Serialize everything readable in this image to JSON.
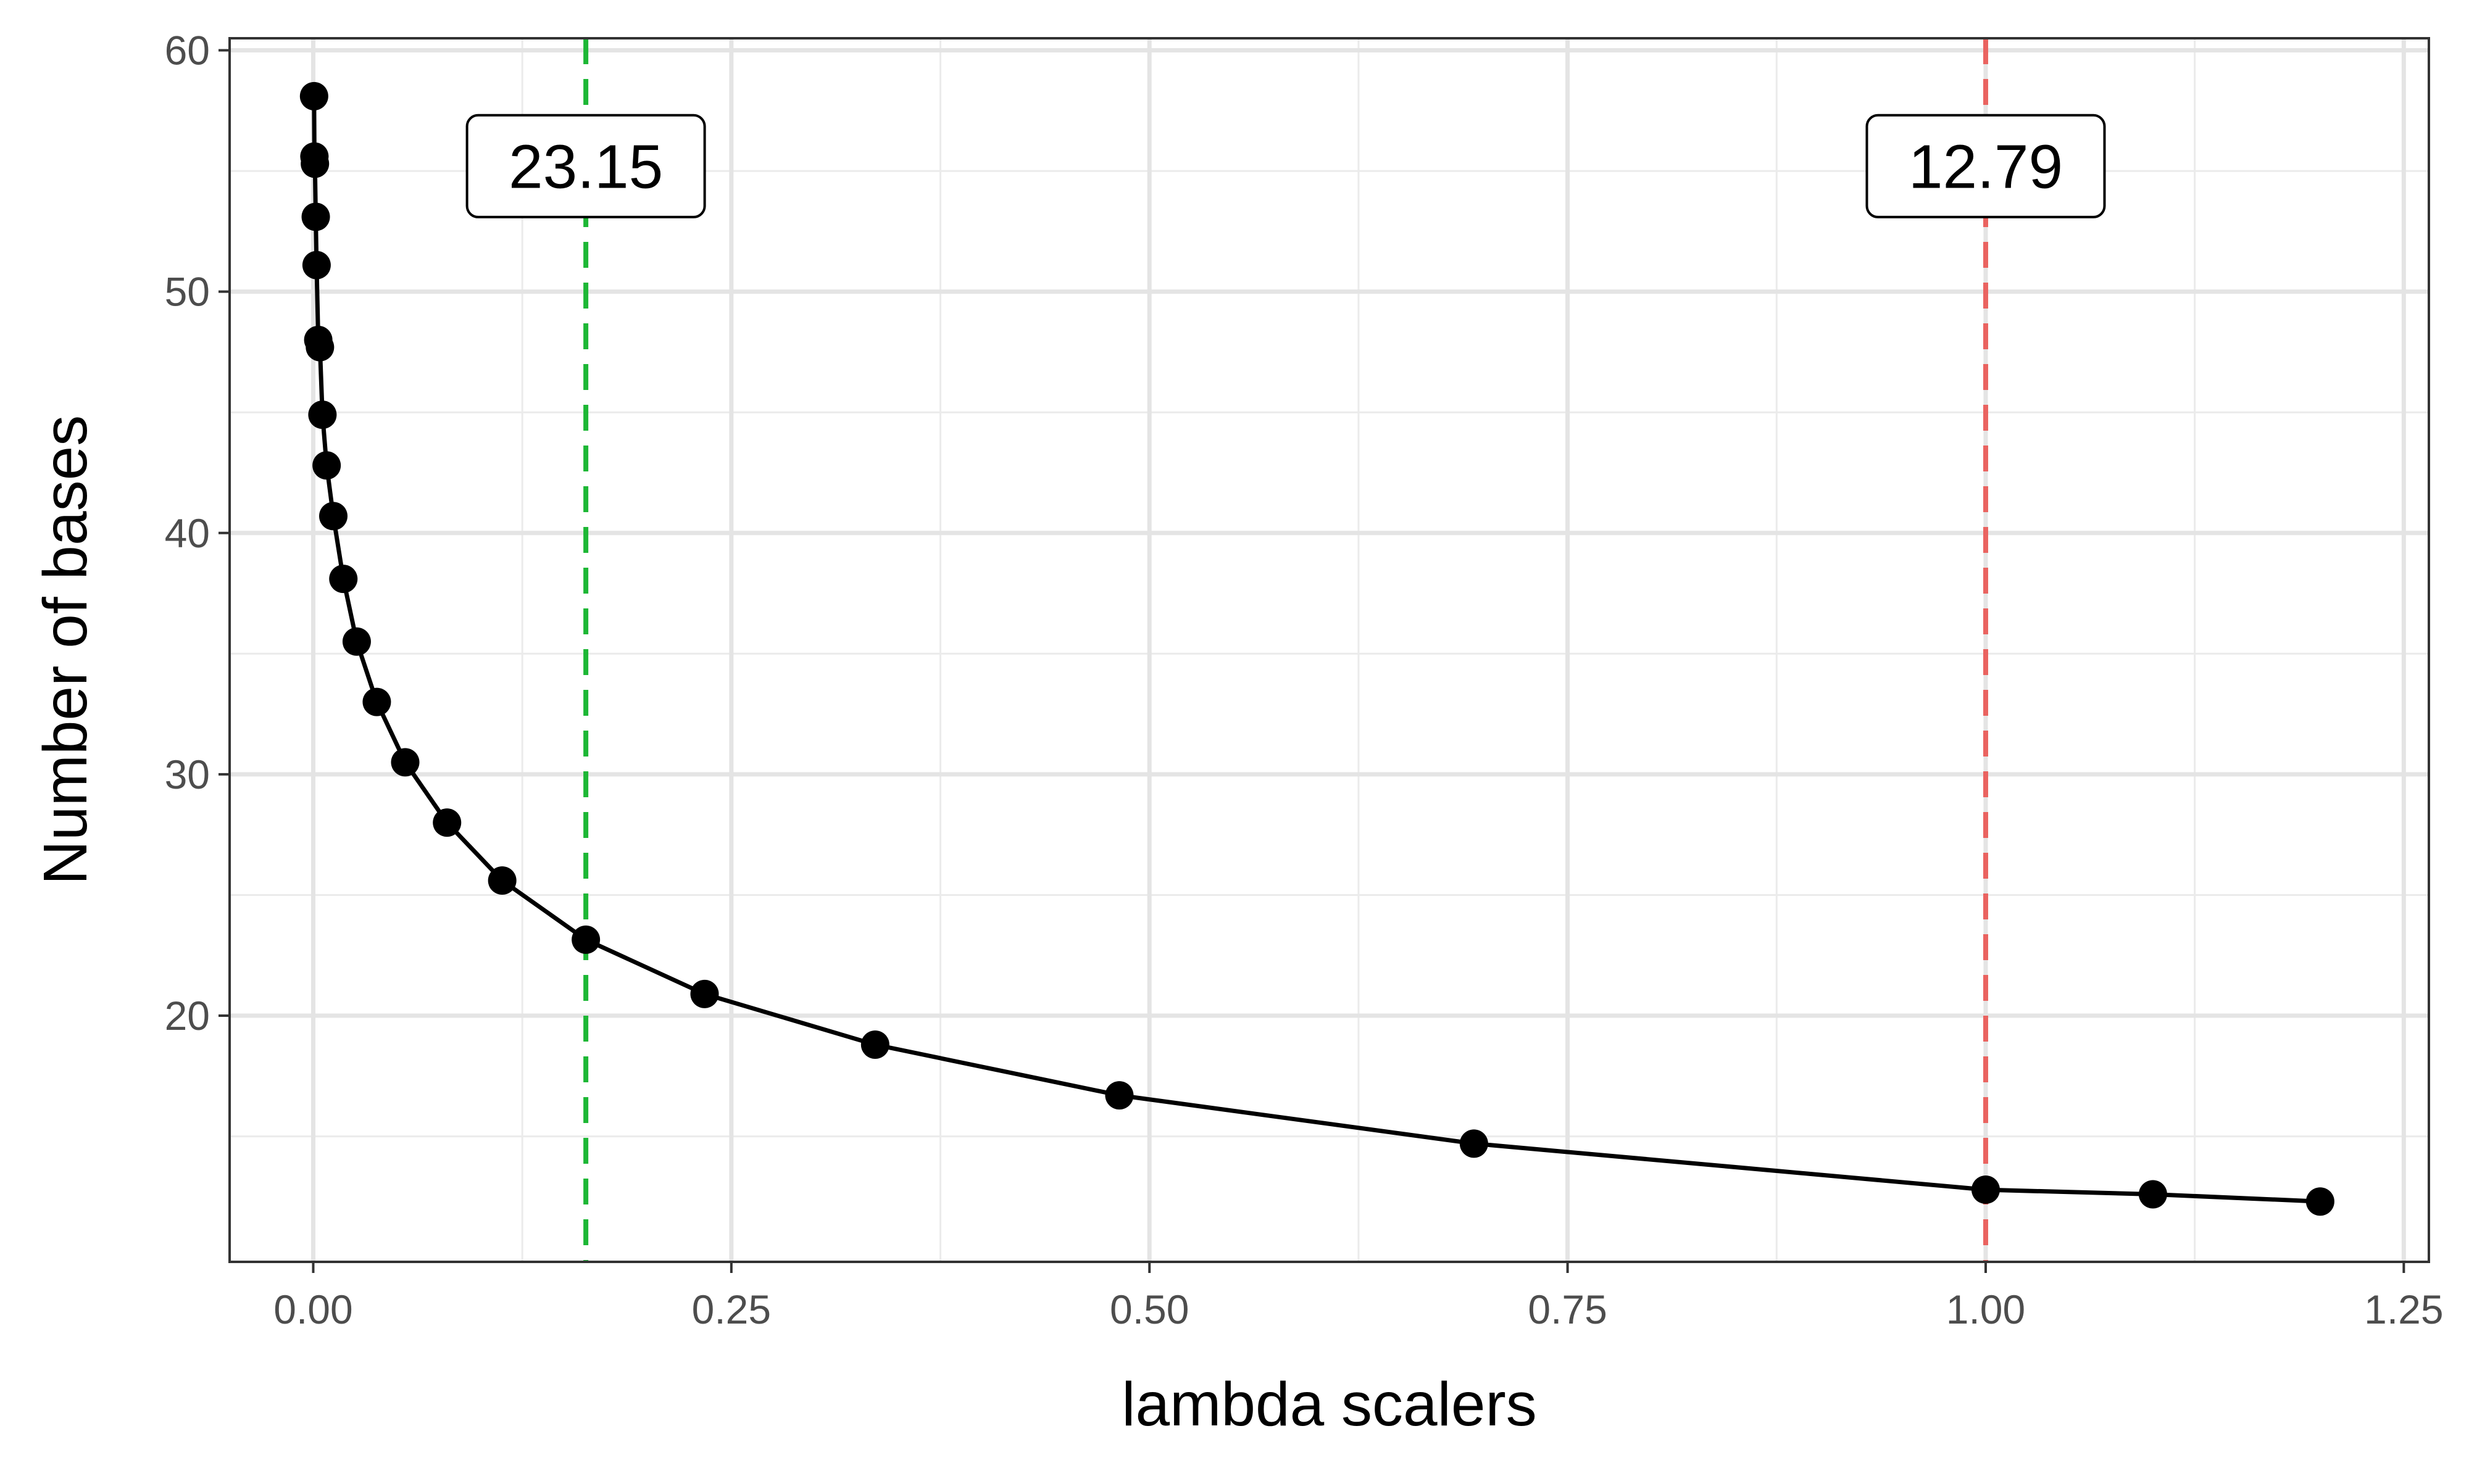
{
  "chart_data": {
    "type": "line",
    "title": "",
    "xlabel": "lambda scalers",
    "ylabel": "Number of bases",
    "xlim": [
      -0.05,
      1.265
    ],
    "ylim": [
      9.8,
      60.5
    ],
    "x_ticks": [
      "0.00",
      "0.25",
      "0.50",
      "0.75",
      "1.00",
      "1.25"
    ],
    "x_tick_values": [
      0,
      0.25,
      0.5,
      0.75,
      1.0,
      1.25
    ],
    "y_ticks": [
      "20",
      "30",
      "40",
      "50",
      "60"
    ],
    "y_tick_values": [
      20,
      30,
      40,
      50,
      60
    ],
    "grid": true,
    "series": [
      {
        "color": "#000000",
        "x": [
          0.0005,
          0.0007,
          0.001,
          0.0015,
          0.002,
          0.003,
          0.004,
          0.0055,
          0.008,
          0.012,
          0.018,
          0.026,
          0.038,
          0.055,
          0.08,
          0.113,
          0.163,
          0.234,
          0.336,
          0.482,
          0.694,
          1.0,
          1.1,
          1.2
        ],
        "y": [
          58.1,
          55.6,
          55.3,
          53.1,
          51.1,
          48.0,
          47.7,
          44.9,
          42.8,
          40.7,
          38.1,
          35.5,
          33.0,
          30.5,
          28.0,
          25.6,
          23.15,
          20.9,
          18.8,
          16.7,
          14.7,
          12.79,
          12.6,
          12.3
        ]
      }
    ],
    "annotations": [
      {
        "x": 0.163,
        "label": "23.15",
        "color": "#1db735",
        "label_y": 55.2
      },
      {
        "x": 1.0,
        "label": "12.79",
        "color": "#ea6360",
        "label_y": 55.2
      }
    ]
  }
}
